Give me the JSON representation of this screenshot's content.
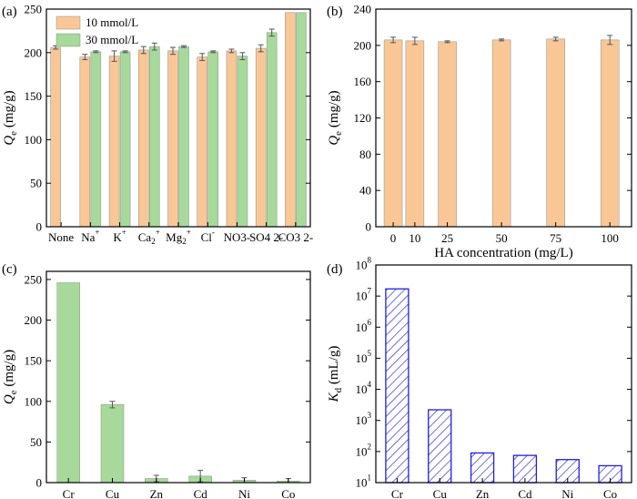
{
  "colors": {
    "orange": "#F9C796",
    "green": "#A6D99A",
    "blue": "#1F1FE0",
    "frame": "#000000",
    "error": "#555555"
  },
  "chart_data": [
    {
      "panel": "(a)",
      "type": "bar",
      "ylabel": "Q_e (mg/g)",
      "ylim": [
        0,
        250
      ],
      "yticks": [
        0,
        50,
        100,
        150,
        200,
        250
      ],
      "categories": [
        "None",
        "Na+",
        "K+",
        "Ca2+",
        "Mg2+",
        "Cl-",
        "NO3-",
        "SO4 2-",
        "CO3 2-"
      ],
      "series": [
        {
          "name": "10 mmol/L",
          "color": "orange",
          "values": [
            206,
            195,
            196,
            203,
            202,
            195,
            202,
            205,
            246
          ],
          "errors": [
            2,
            3,
            6,
            4,
            4,
            4,
            2,
            4,
            0
          ]
        },
        {
          "name": "30 mmol/L",
          "color": "green",
          "values": [
            null,
            201,
            201,
            207,
            207,
            201,
            196,
            223,
            246
          ],
          "errors": [
            0,
            1,
            1,
            4,
            1,
            1,
            4,
            4,
            0
          ]
        }
      ],
      "legend": "top-left"
    },
    {
      "panel": "(b)",
      "type": "bar",
      "xlabel": "HA concentration (mg/L)",
      "ylabel": "Q_e (mg/g)",
      "ylim": [
        0,
        240
      ],
      "yticks": [
        0,
        40,
        80,
        120,
        160,
        200,
        240
      ],
      "xlim": [
        -8,
        110
      ],
      "x": [
        0,
        10,
        25,
        50,
        75,
        100
      ],
      "values": [
        206,
        205,
        204,
        206,
        207,
        206
      ],
      "errors": [
        3,
        4,
        1,
        1,
        2,
        5
      ],
      "color": "orange"
    },
    {
      "panel": "(c)",
      "type": "bar",
      "ylabel": "Q_e (mg/g)",
      "ylim": [
        0,
        260
      ],
      "yticks": [
        0,
        50,
        100,
        150,
        200,
        250
      ],
      "categories": [
        "Cr",
        "Cu",
        "Zn",
        "Cd",
        "Ni",
        "Co"
      ],
      "values": [
        246,
        96,
        5,
        8,
        3,
        2
      ],
      "errors": [
        0,
        4,
        4,
        7,
        3,
        3
      ],
      "color": "green"
    },
    {
      "panel": "(d)",
      "type": "bar",
      "ylabel": "K_d (mL/g)",
      "yscale": "log",
      "ylim": [
        10,
        100000000
      ],
      "ytick_exponents": [
        1,
        2,
        3,
        4,
        5,
        6,
        7,
        8
      ],
      "categories": [
        "Cr",
        "Cu",
        "Zn",
        "Cd",
        "Ni",
        "Co"
      ],
      "values": [
        17000000,
        2200,
        90,
        75,
        55,
        35
      ],
      "color": "blue",
      "fill": "hatched"
    }
  ]
}
